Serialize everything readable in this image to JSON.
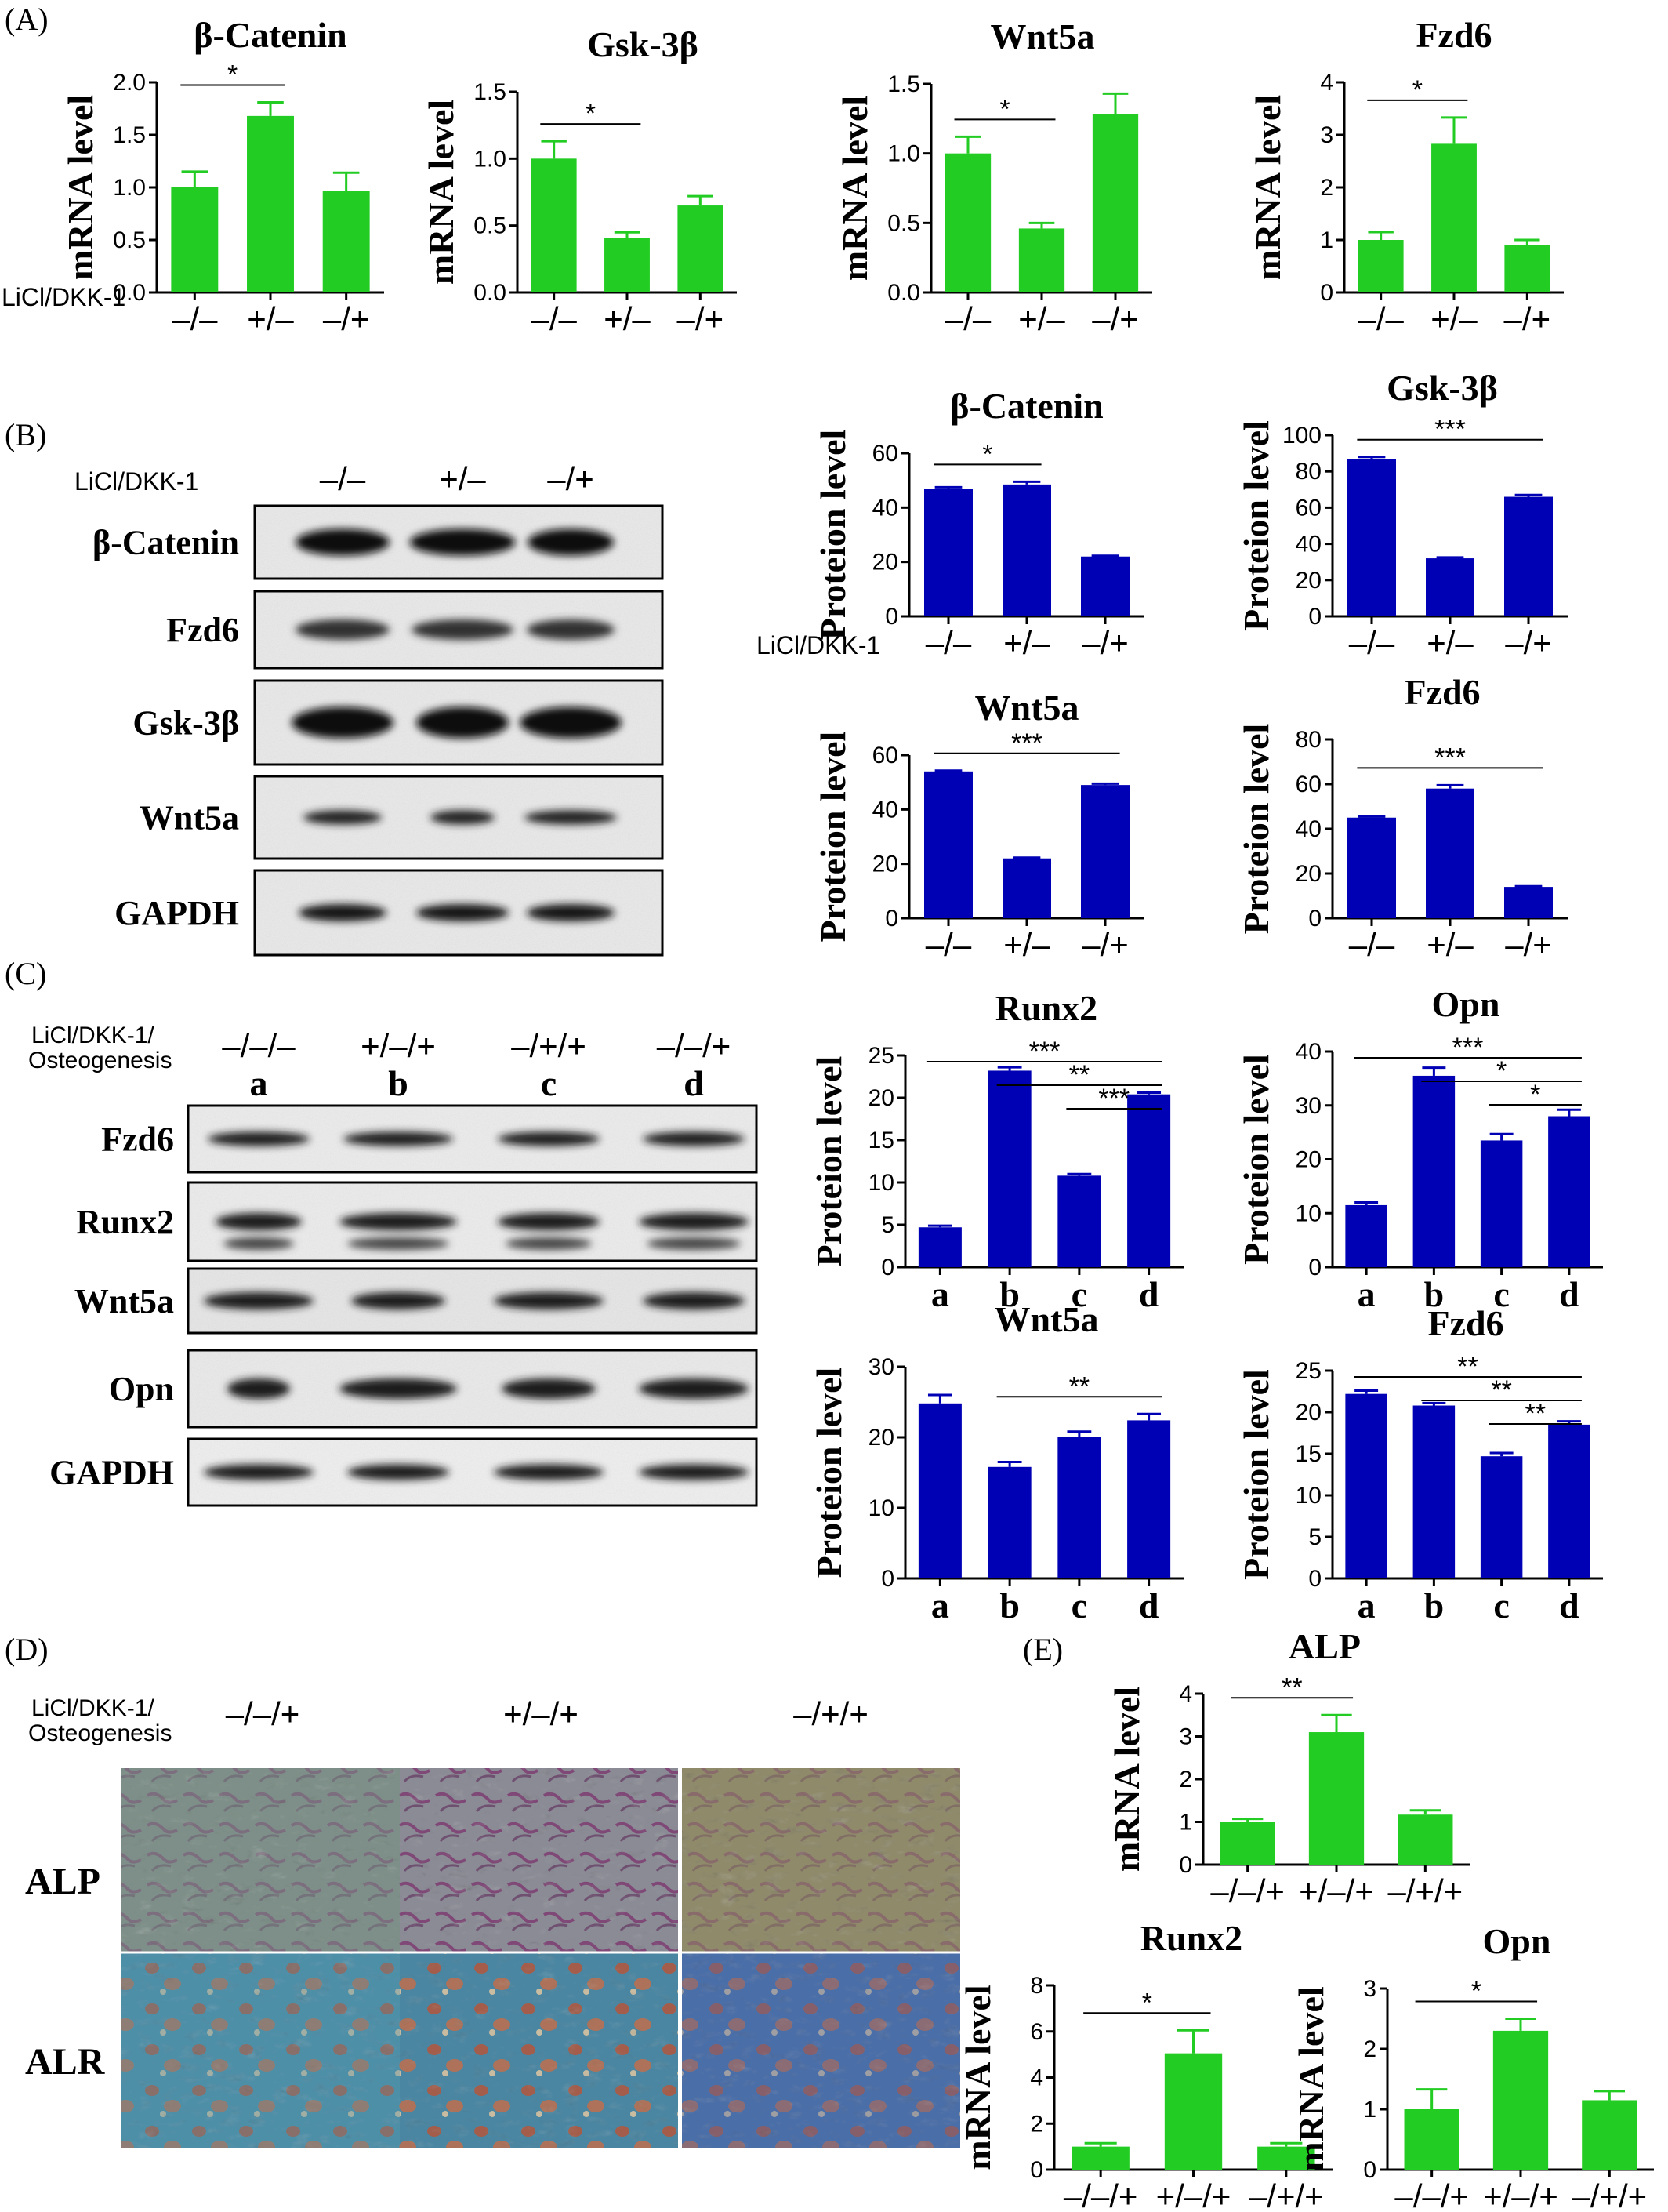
{
  "panels": {
    "A": "(A)",
    "B": "(B)",
    "C": "(C)",
    "D": "(D)",
    "E": "(E)"
  },
  "treatment_label": "LiCl/DKK-1",
  "treatment_label_osteo_line1": "LiCl/DKK-1/",
  "treatment_label_osteo_line2": "Osteogenesis",
  "blot_B": {
    "lanes": [
      "–/–",
      "+/–",
      "–/+"
    ],
    "rows": [
      "β-Catenin",
      "Fzd6",
      "Gsk-3β",
      "Wnt5a",
      "GAPDH"
    ]
  },
  "blot_C": {
    "lanes_top": [
      "–/–/–",
      "+/–/+",
      "–/+/+",
      "–/–/+"
    ],
    "lanes_letter": [
      "a",
      "b",
      "c",
      "d"
    ],
    "rows": [
      "Fzd6",
      "Runx2",
      "Wnt5a",
      "Opn",
      "GAPDH"
    ]
  },
  "stain_D": {
    "columns": [
      "–/–/+",
      "+/–/+",
      "–/+/+"
    ],
    "rows": [
      "ALP",
      "ALR"
    ]
  },
  "chart_data": [
    {
      "id": "A1",
      "type": "bar",
      "title": "β-Catenin",
      "ylabel": "mRNA level",
      "categories": [
        "–/–",
        "+/–",
        "–/+"
      ],
      "values": [
        1.0,
        1.68,
        0.97
      ],
      "errors": [
        0.15,
        0.13,
        0.17
      ],
      "ylim": [
        0,
        2.0
      ],
      "yticks": [
        "0.0",
        "0.5",
        "1.0",
        "1.5",
        "2.0"
      ],
      "color": "#22cc22",
      "sig": [
        {
          "from": 0,
          "to": 1,
          "label": "*"
        }
      ]
    },
    {
      "id": "A2",
      "type": "bar",
      "title": "Gsk-3β",
      "ylabel": "mRNA level",
      "categories": [
        "–/–",
        "+/–",
        "–/+"
      ],
      "values": [
        1.0,
        0.41,
        0.65
      ],
      "errors": [
        0.13,
        0.04,
        0.07
      ],
      "ylim": [
        0,
        1.5
      ],
      "yticks": [
        "0.0",
        "0.5",
        "1.0",
        "1.5"
      ],
      "color": "#22cc22",
      "sig": [
        {
          "from": 0,
          "to": 1,
          "label": "*"
        }
      ]
    },
    {
      "id": "A3",
      "type": "bar",
      "title": "Wnt5a",
      "ylabel": "mRNA level",
      "categories": [
        "–/–",
        "+/–",
        "–/+"
      ],
      "values": [
        1.0,
        0.46,
        1.28
      ],
      "errors": [
        0.12,
        0.04,
        0.15
      ],
      "ylim": [
        0,
        1.5
      ],
      "yticks": [
        "0.0",
        "0.5",
        "1.0",
        "1.5"
      ],
      "color": "#22cc22",
      "sig": [
        {
          "from": 0,
          "to": 1,
          "label": "*"
        }
      ]
    },
    {
      "id": "A4",
      "type": "bar",
      "title": "Fzd6",
      "ylabel": "mRNA level",
      "categories": [
        "–/–",
        "+/–",
        "–/+"
      ],
      "values": [
        1.0,
        2.83,
        0.9
      ],
      "errors": [
        0.15,
        0.5,
        0.1
      ],
      "ylim": [
        0,
        4
      ],
      "yticks": [
        "0",
        "1",
        "2",
        "3",
        "4"
      ],
      "color": "#22cc22",
      "sig": [
        {
          "from": 0,
          "to": 1,
          "label": "*"
        }
      ]
    },
    {
      "id": "B1",
      "type": "bar",
      "title": "β-Catenin",
      "ylabel": "Proteion level",
      "categories": [
        "–/–",
        "+/–",
        "–/+"
      ],
      "values": [
        47,
        48.5,
        22
      ],
      "errors": [
        0.5,
        1,
        0.3
      ],
      "ylim": [
        0,
        60
      ],
      "yticks": [
        "0",
        "20",
        "40",
        "60"
      ],
      "color": "#0000b4",
      "sig": [
        {
          "from": 0,
          "to": 1,
          "label": "*"
        }
      ]
    },
    {
      "id": "B2",
      "type": "bar",
      "title": "Gsk-3β",
      "ylabel": "Proteion level",
      "categories": [
        "–/–",
        "+/–",
        "–/+"
      ],
      "values": [
        87,
        32,
        66
      ],
      "errors": [
        1,
        0.5,
        1
      ],
      "ylim": [
        0,
        100
      ],
      "yticks": [
        "0",
        "20",
        "40",
        "60",
        "80",
        "100"
      ],
      "color": "#0000b4",
      "sig": [
        {
          "from": 0,
          "to": 2,
          "label": "***"
        }
      ]
    },
    {
      "id": "B3",
      "type": "bar",
      "title": "Wnt5a",
      "ylabel": "Proteion level",
      "categories": [
        "–/–",
        "+/–",
        "–/+"
      ],
      "values": [
        54,
        22,
        49
      ],
      "errors": [
        0.3,
        0.3,
        0.5
      ],
      "ylim": [
        0,
        60
      ],
      "yticks": [
        "0",
        "20",
        "40",
        "60"
      ],
      "color": "#0000b4",
      "sig": [
        {
          "from": 0,
          "to": 2,
          "label": "***"
        }
      ]
    },
    {
      "id": "B4",
      "type": "bar",
      "title": "Fzd6",
      "ylabel": "Proteion level",
      "categories": [
        "–/–",
        "+/–",
        "–/+"
      ],
      "values": [
        45,
        58,
        14
      ],
      "errors": [
        0.5,
        1.5,
        0.3
      ],
      "ylim": [
        0,
        80
      ],
      "yticks": [
        "0",
        "20",
        "40",
        "60",
        "80"
      ],
      "color": "#0000b4",
      "sig": [
        {
          "from": 0,
          "to": 2,
          "label": "***"
        }
      ]
    },
    {
      "id": "C1",
      "type": "bar",
      "title": "Runx2",
      "ylabel": "Proteion level",
      "categories": [
        "a",
        "b",
        "c",
        "d"
      ],
      "values": [
        4.7,
        23.2,
        10.8,
        20.4
      ],
      "errors": [
        0.2,
        0.4,
        0.2,
        0.2
      ],
      "ylim": [
        0,
        25
      ],
      "yticks": [
        "0",
        "5",
        "10",
        "15",
        "20",
        "25"
      ],
      "color": "#0000b4",
      "sig": [
        {
          "from": 0,
          "to": 3,
          "label": "***"
        },
        {
          "from": 1,
          "to": 3,
          "label": "**"
        },
        {
          "from": 2,
          "to": 3,
          "label": "***"
        }
      ]
    },
    {
      "id": "C2",
      "type": "bar",
      "title": "Opn",
      "ylabel": "Proteion level",
      "categories": [
        "a",
        "b",
        "c",
        "d"
      ],
      "values": [
        11.5,
        35.5,
        23.5,
        28
      ],
      "errors": [
        0.5,
        1.5,
        1.2,
        1.2
      ],
      "ylim": [
        0,
        40
      ],
      "yticks": [
        "0",
        "10",
        "20",
        "30",
        "40"
      ],
      "color": "#0000b4",
      "sig": [
        {
          "from": 0,
          "to": 3,
          "label": "***"
        },
        {
          "from": 1,
          "to": 3,
          "label": "*"
        },
        {
          "from": 2,
          "to": 3,
          "label": "*"
        }
      ]
    },
    {
      "id": "C3",
      "type": "bar",
      "title": "Wnt5a",
      "ylabel": "Proteion level",
      "categories": [
        "a",
        "b",
        "c",
        "d"
      ],
      "values": [
        24.8,
        15.8,
        20.0,
        22.4
      ],
      "errors": [
        1.2,
        0.7,
        0.8,
        0.9
      ],
      "ylim": [
        0,
        30
      ],
      "yticks": [
        "0",
        "10",
        "20",
        "30"
      ],
      "color": "#0000b4",
      "sig": [
        {
          "from": 1,
          "to": 3,
          "label": "**"
        }
      ]
    },
    {
      "id": "C4",
      "type": "bar",
      "title": "Fzd6",
      "ylabel": "Proteion level",
      "categories": [
        "a",
        "b",
        "c",
        "d"
      ],
      "values": [
        22.2,
        20.8,
        14.7,
        18.5
      ],
      "errors": [
        0.4,
        0.3,
        0.4,
        0.4
      ],
      "ylim": [
        0,
        25
      ],
      "yticks": [
        "0",
        "5",
        "10",
        "15",
        "20",
        "25"
      ],
      "color": "#0000b4",
      "sig": [
        {
          "from": 0,
          "to": 3,
          "label": "**"
        },
        {
          "from": 1,
          "to": 3,
          "label": "**"
        },
        {
          "from": 2,
          "to": 3,
          "label": "**"
        }
      ]
    },
    {
      "id": "E1",
      "type": "bar",
      "title": "ALP",
      "ylabel": "mRNA level",
      "categories": [
        "–/–/+",
        "+/–/+",
        "–/+/+"
      ],
      "values": [
        1.0,
        3.1,
        1.17
      ],
      "errors": [
        0.07,
        0.4,
        0.1
      ],
      "ylim": [
        0,
        4
      ],
      "yticks": [
        "0",
        "1",
        "2",
        "3",
        "4"
      ],
      "color": "#22cc22",
      "sig": [
        {
          "from": 0,
          "to": 1,
          "label": "**"
        }
      ]
    },
    {
      "id": "E2",
      "type": "bar",
      "title": "Runx2",
      "ylabel": "mRNA level",
      "categories": [
        "–/–/+",
        "+/–/+",
        "–/+/+"
      ],
      "values": [
        1.0,
        5.05,
        1.0
      ],
      "errors": [
        0.15,
        1.0,
        0.15
      ],
      "ylim": [
        0,
        8
      ],
      "yticks": [
        "0",
        "2",
        "4",
        "6",
        "8"
      ],
      "color": "#22cc22",
      "sig": [
        {
          "from": 0,
          "to": 1,
          "label": "*"
        }
      ]
    },
    {
      "id": "E3",
      "type": "bar",
      "title": "Opn",
      "ylabel": "mRNA level",
      "categories": [
        "–/–/+",
        "+/–/+",
        "–/+/+"
      ],
      "values": [
        1.0,
        2.3,
        1.15
      ],
      "errors": [
        0.33,
        0.2,
        0.15
      ],
      "ylim": [
        0,
        3
      ],
      "yticks": [
        "0",
        "1",
        "2",
        "3"
      ],
      "color": "#22cc22",
      "sig": [
        {
          "from": 0,
          "to": 1,
          "label": "*"
        }
      ]
    }
  ]
}
